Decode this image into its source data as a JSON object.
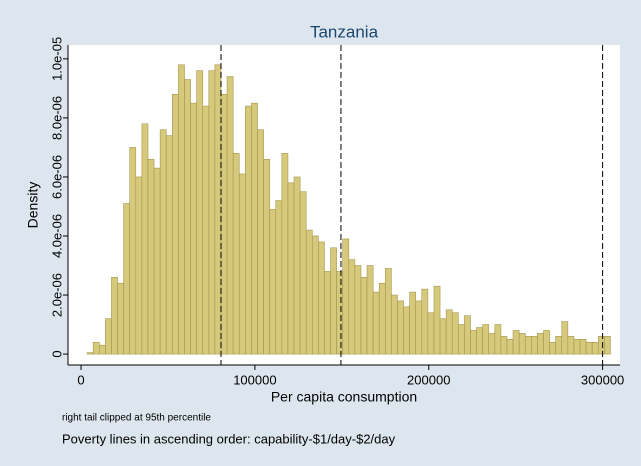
{
  "chart_data": {
    "type": "histogram",
    "title": "Tanzania",
    "xlabel": "Per capita consumption",
    "ylabel": "Density",
    "notes": [
      "right tail clipped at 95th percentile",
      "Poverty lines in ascending order: capability-$1/day-$2/day"
    ],
    "color": "#d7c97c",
    "edgecolor": "#a3964c",
    "bins": [
      3500,
      7000,
      10500,
      14000,
      17500,
      21000,
      24500,
      28000,
      31500,
      35000,
      38500,
      42000,
      45500,
      49000,
      52500,
      56000,
      59500,
      63000,
      66500,
      70000,
      73500,
      77000,
      80500,
      84000,
      87500,
      91000,
      94500,
      98000,
      101500,
      105000,
      108500,
      112000,
      115500,
      119000,
      122500,
      126000,
      129500,
      133000,
      136500,
      140000,
      143500,
      147000,
      150500,
      154000,
      157500,
      161000,
      164500,
      168000,
      171500,
      175000,
      178500,
      182000,
      185500,
      189000,
      192500,
      196000,
      199500,
      203000,
      206500,
      210000,
      213500,
      217000,
      220500,
      224000,
      227500,
      231000,
      234500,
      238000,
      241500,
      245000,
      248500,
      252000,
      255500,
      259000,
      262500,
      266000,
      269500,
      273000,
      276500,
      280000,
      283500,
      287000,
      290500,
      294000,
      297500,
      301000,
      304500
    ],
    "values": [
      5e-08,
      4e-07,
      3e-07,
      1.2e-06,
      2.6e-06,
      2.4e-06,
      5.1e-06,
      7e-06,
      6e-06,
      7.8e-06,
      6.6e-06,
      6.3e-06,
      7.6e-06,
      7.4e-06,
      8.8e-06,
      9.8e-06,
      9.3e-06,
      8.5e-06,
      9.6e-06,
      8.4e-06,
      9.6e-06,
      9.8e-06,
      8.8e-06,
      9.4e-06,
      6.8e-06,
      6.1e-06,
      8.4e-06,
      8.5e-06,
      7.6e-06,
      6.6e-06,
      4.9e-06,
      5.2e-06,
      6.8e-06,
      5.8e-06,
      6e-06,
      5.5e-06,
      4.2e-06,
      4e-06,
      3.8e-06,
      2.8e-06,
      3.6e-06,
      2.8e-06,
      3.9e-06,
      3.2e-06,
      3e-06,
      2.6e-06,
      3e-06,
      2.1e-06,
      2.4e-06,
      2.9e-06,
      2e-06,
      1.8e-06,
      1.6e-06,
      2.1e-06,
      1.8e-06,
      2.2e-06,
      1.4e-06,
      2.3e-06,
      1.2e-06,
      1.5e-06,
      1.4e-06,
      1e-06,
      1.3e-06,
      8e-07,
      9e-07,
      1e-06,
      7e-07,
      1e-06,
      6e-07,
      5e-07,
      8e-07,
      7e-07,
      6e-07,
      6e-07,
      7e-07,
      8e-07,
      4e-07,
      6e-07,
      1.1e-06,
      6e-07,
      5e-07,
      5e-07,
      4e-07,
      4e-07,
      6e-07,
      6e-07
    ],
    "vlines": [
      80500,
      149500,
      300000
    ],
    "xlim": [
      -7500,
      310000
    ],
    "ylim": [
      -3.7e-07,
      1.047e-05
    ],
    "xticks": [
      0,
      100000,
      200000,
      300000
    ],
    "yticks": [
      0,
      {
        "value": 2e-06,
        "label": "2.0e-06"
      },
      {
        "value": 4e-06,
        "label": "4.0e-06"
      },
      {
        "value": 6e-06,
        "label": "6.0e-06"
      },
      {
        "value": 8e-06,
        "label": "8.0e-06"
      },
      {
        "value": 1e-05,
        "label": "1.0e-05"
      }
    ]
  }
}
